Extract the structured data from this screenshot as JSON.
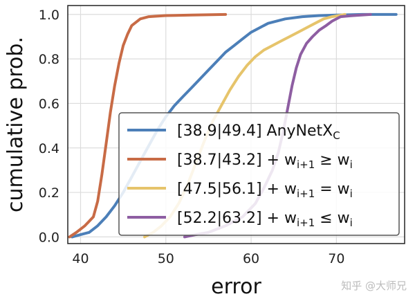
{
  "chart_data": {
    "type": "line",
    "xlabel": "error",
    "ylabel": "cumulative prob.",
    "xlim": [
      38.5,
      78
    ],
    "ylim": [
      -0.03,
      1.04
    ],
    "xticks": [
      40,
      50,
      60,
      70
    ],
    "yticks": [
      0.0,
      0.2,
      0.4,
      0.6,
      0.8,
      1.0
    ],
    "grid": true,
    "legend_position": "lower-right",
    "series": [
      {
        "name": "[38.9|49.4] AnyNetX_C",
        "label_main": "[38.9|49.4] AnyNetX",
        "label_sub": "C",
        "color": "#4C7FB8",
        "points": [
          [
            39,
            0
          ],
          [
            40,
            0.01
          ],
          [
            41,
            0.02
          ],
          [
            42,
            0.05
          ],
          [
            43,
            0.09
          ],
          [
            44,
            0.14
          ],
          [
            45,
            0.2
          ],
          [
            46,
            0.27
          ],
          [
            47,
            0.34
          ],
          [
            48,
            0.41
          ],
          [
            49,
            0.48
          ],
          [
            50,
            0.54
          ],
          [
            51,
            0.59
          ],
          [
            52,
            0.63
          ],
          [
            53,
            0.67
          ],
          [
            54,
            0.71
          ],
          [
            55,
            0.75
          ],
          [
            56,
            0.79
          ],
          [
            57,
            0.83
          ],
          [
            58,
            0.86
          ],
          [
            59,
            0.89
          ],
          [
            60,
            0.92
          ],
          [
            61,
            0.94
          ],
          [
            62,
            0.96
          ],
          [
            64,
            0.98
          ],
          [
            66,
            0.99
          ],
          [
            68,
            0.995
          ],
          [
            70,
            0.997
          ],
          [
            73,
            1.0
          ],
          [
            77,
            1.0
          ]
        ]
      },
      {
        "name": "[38.7|43.2] + w_{i+1} ≥ w_i",
        "label_main": "[38.7|43.2] + w",
        "label_sub": "i+1",
        "label_rel": "≥",
        "label_end": "w",
        "label_end_sub": "i",
        "color": "#C86B46",
        "points": [
          [
            38.7,
            0
          ],
          [
            39.5,
            0.02
          ],
          [
            40.5,
            0.05
          ],
          [
            41.5,
            0.09
          ],
          [
            42,
            0.16
          ],
          [
            42.5,
            0.28
          ],
          [
            43,
            0.42
          ],
          [
            43.5,
            0.56
          ],
          [
            44,
            0.68
          ],
          [
            44.5,
            0.78
          ],
          [
            45,
            0.86
          ],
          [
            45.5,
            0.91
          ],
          [
            46,
            0.95
          ],
          [
            47,
            0.98
          ],
          [
            48,
            0.99
          ],
          [
            50,
            0.995
          ],
          [
            53,
            0.997
          ],
          [
            57,
            1.0
          ]
        ]
      },
      {
        "name": "[47.5|56.1] + w_{i+1} = w_i",
        "label_main": "[47.5|56.1] + w",
        "label_sub": "i+1",
        "label_rel": "=",
        "label_end": "w",
        "label_end_sub": "i",
        "color": "#E6C46B",
        "points": [
          [
            47.5,
            0
          ],
          [
            48.5,
            0.02
          ],
          [
            49.5,
            0.05
          ],
          [
            50.5,
            0.09
          ],
          [
            51.5,
            0.15
          ],
          [
            52.5,
            0.23
          ],
          [
            53.5,
            0.33
          ],
          [
            54.5,
            0.43
          ],
          [
            55.5,
            0.52
          ],
          [
            56.5,
            0.59
          ],
          [
            57.5,
            0.66
          ],
          [
            58.5,
            0.72
          ],
          [
            59.5,
            0.77
          ],
          [
            60.5,
            0.81
          ],
          [
            61.5,
            0.84
          ],
          [
            62.5,
            0.86
          ],
          [
            63.5,
            0.88
          ],
          [
            64.5,
            0.9
          ],
          [
            65.5,
            0.92
          ],
          [
            66.5,
            0.94
          ],
          [
            67.5,
            0.96
          ],
          [
            68.5,
            0.98
          ],
          [
            69.5,
            0.99
          ],
          [
            71,
            1.0
          ]
        ]
      },
      {
        "name": "[52.2|63.2] + w_{i+1} ≤ w_i",
        "label_main": "[52.2|63.2] + w",
        "label_sub": "i+1",
        "label_rel": "≤",
        "label_end": "w",
        "label_end_sub": "i",
        "color": "#8E5EA2",
        "points": [
          [
            52.2,
            0
          ],
          [
            53.5,
            0.01
          ],
          [
            55,
            0.02
          ],
          [
            57,
            0.05
          ],
          [
            59,
            0.09
          ],
          [
            60.5,
            0.15
          ],
          [
            61.5,
            0.22
          ],
          [
            62.5,
            0.3
          ],
          [
            63.2,
            0.38
          ],
          [
            63.8,
            0.48
          ],
          [
            64.3,
            0.58
          ],
          [
            64.8,
            0.68
          ],
          [
            65.3,
            0.76
          ],
          [
            65.8,
            0.82
          ],
          [
            66.5,
            0.87
          ],
          [
            67.2,
            0.9
          ],
          [
            68,
            0.93
          ],
          [
            68.8,
            0.95
          ],
          [
            69.5,
            0.97
          ],
          [
            70.5,
            0.99
          ],
          [
            72,
            0.995
          ],
          [
            74,
            1.0
          ]
        ]
      }
    ]
  },
  "watermark": "知乎 @大师兄"
}
